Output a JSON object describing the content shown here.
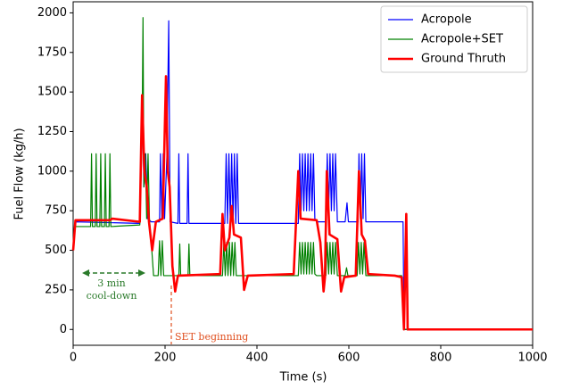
{
  "chart_data": {
    "type": "line",
    "xlabel": "Time (s)",
    "ylabel": "Fuel Flow (kg/h)",
    "xlim": [
      0,
      1000
    ],
    "xticks": [
      0,
      200,
      400,
      600,
      800,
      1000
    ],
    "ylim": [
      -100,
      2070
    ],
    "yticks": [
      0,
      250,
      500,
      750,
      1000,
      1250,
      1500,
      1750,
      2000
    ],
    "legend": "upper right",
    "annotations": [
      "3 min",
      "cool-down",
      "SET beginning"
    ],
    "series": [
      {
        "name": "Acropole",
        "color": "#0000ff",
        "width": 1.2,
        "x": [
          0,
          4,
          145,
          150,
          154,
          158,
          162,
          170,
          188,
          190,
          193,
          196,
          199,
          204,
          208,
          211,
          228,
          230,
          232,
          248,
          250,
          252,
          330,
          333,
          336,
          339,
          342,
          345,
          348,
          351,
          354,
          357,
          360,
          490,
          493,
          496,
          499,
          502,
          505,
          508,
          511,
          514,
          517,
          520,
          523,
          526,
          530,
          550,
          553,
          556,
          559,
          562,
          565,
          568,
          571,
          575,
          592,
          596,
          599,
          620,
          622,
          625,
          628,
          631,
          634,
          637,
          700,
          718,
          720,
          1000
        ],
        "values": [
          500,
          680,
          670,
          1480,
          900,
          1110,
          700,
          680,
          680,
          1110,
          700,
          1110,
          700,
          1100,
          1950,
          680,
          670,
          1110,
          670,
          670,
          1110,
          670,
          670,
          1110,
          670,
          1110,
          670,
          1110,
          670,
          1110,
          670,
          1110,
          670,
          670,
          1110,
          750,
          1110,
          750,
          1110,
          750,
          1110,
          750,
          1110,
          750,
          1110,
          700,
          680,
          680,
          1110,
          750,
          1110,
          750,
          1110,
          750,
          1110,
          680,
          680,
          800,
          680,
          680,
          1110,
          700,
          1110,
          700,
          1110,
          680,
          680,
          680,
          0,
          0
        ]
      },
      {
        "name": "Acropole+SET",
        "color": "#008000",
        "width": 1.2,
        "x": [
          0,
          4,
          38,
          40,
          42,
          48,
          50,
          52,
          58,
          60,
          62,
          68,
          70,
          72,
          78,
          80,
          82,
          145,
          150,
          152,
          154,
          157,
          160,
          163,
          166,
          170,
          175,
          185,
          188,
          191,
          194,
          197,
          230,
          232,
          234,
          250,
          252,
          254,
          325,
          328,
          331,
          334,
          337,
          340,
          343,
          346,
          349,
          352,
          355,
          490,
          493,
          496,
          499,
          502,
          505,
          508,
          511,
          514,
          517,
          520,
          523,
          526,
          530,
          550,
          553,
          556,
          559,
          562,
          565,
          568,
          571,
          575,
          592,
          595,
          598,
          618,
          621,
          624,
          627,
          630,
          633,
          637,
          715,
          720,
          1000
        ],
        "values": [
          500,
          650,
          650,
          1110,
          650,
          650,
          1110,
          650,
          650,
          1110,
          650,
          650,
          1110,
          650,
          650,
          1110,
          650,
          660,
          1200,
          1970,
          900,
          1110,
          700,
          1110,
          700,
          550,
          340,
          340,
          560,
          340,
          560,
          340,
          340,
          540,
          340,
          340,
          540,
          340,
          340,
          550,
          340,
          550,
          340,
          550,
          340,
          550,
          340,
          550,
          340,
          340,
          550,
          350,
          550,
          350,
          550,
          350,
          550,
          350,
          550,
          350,
          550,
          350,
          340,
          340,
          550,
          350,
          550,
          350,
          550,
          350,
          550,
          340,
          340,
          390,
          340,
          340,
          550,
          350,
          550,
          350,
          550,
          340,
          340,
          0,
          0
        ]
      },
      {
        "name": "Ground Thruth",
        "color": "#ff0000",
        "width": 2.6,
        "x": [
          0,
          5,
          80,
          85,
          145,
          150,
          155,
          160,
          165,
          172,
          180,
          195,
          202,
          206,
          210,
          216,
          222,
          228,
          320,
          325,
          330,
          340,
          345,
          350,
          365,
          372,
          380,
          480,
          490,
          495,
          530,
          538,
          545,
          548,
          552,
          558,
          575,
          583,
          590,
          615,
          622,
          628,
          635,
          642,
          700,
          715,
          720,
          725,
          728,
          1000
        ],
        "values": [
          500,
          690,
          690,
          700,
          680,
          1480,
          1000,
          900,
          680,
          500,
          680,
          700,
          1600,
          1000,
          900,
          400,
          240,
          340,
          350,
          730,
          500,
          580,
          780,
          600,
          580,
          250,
          340,
          350,
          1000,
          700,
          690,
          550,
          240,
          330,
          1000,
          600,
          570,
          240,
          330,
          340,
          1000,
          600,
          560,
          350,
          340,
          330,
          0,
          730,
          0,
          0
        ]
      }
    ]
  }
}
